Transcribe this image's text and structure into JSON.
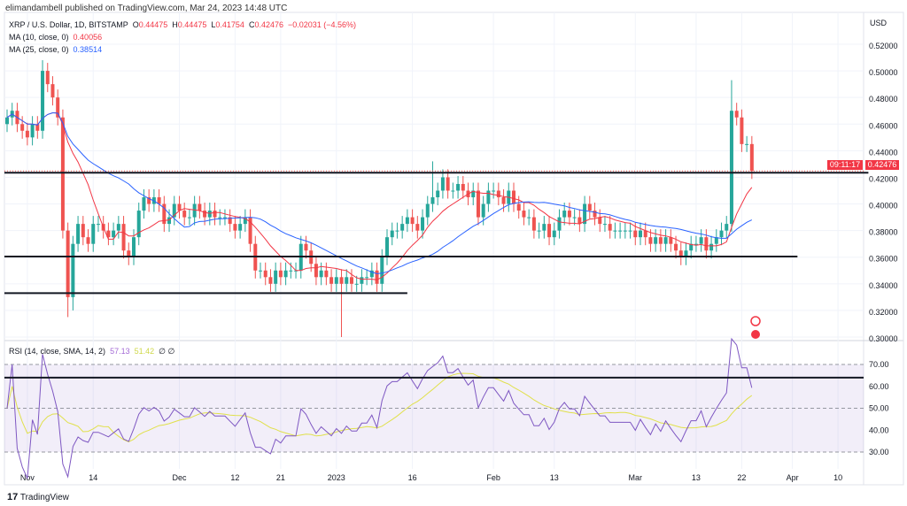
{
  "header": {
    "published": "elimandambell published on TradingView.com, Mar 24, 2023 14:48 UTC",
    "symbol": "XRP / U.S. Dollar, 1D, BITSTAMP",
    "o_label": "O",
    "o": "0.44475",
    "h_label": "H",
    "h": "0.44475",
    "l_label": "L",
    "l": "0.41754",
    "c_label": "C",
    "c": "0.42476",
    "change": "−0.02031 (−4.56%)",
    "ma10_label": "MA (10, close, 0)",
    "ma10": "0.40056",
    "ma25_label": "MA (25, close, 0)",
    "ma25": "0.38514",
    "rsi_label": "RSI (14, close, SMA, 14, 2)",
    "rsi": "57.13",
    "rsi_ma": "51.42",
    "rsi_extra": "∅ ∅"
  },
  "price_tag": {
    "price": "0.42476",
    "countdown": "09:11:17"
  },
  "footer": {
    "brand": "TradingView"
  },
  "colors": {
    "up": "#26a69a",
    "down": "#ef5350",
    "ma10": "#f23645",
    "ma25": "#2962ff",
    "rsi": "#7e57c2",
    "rsi_ma": "#e0e04a",
    "level": "#131722"
  },
  "chart_data": {
    "type": "candlestick",
    "currency": "USD",
    "start_date": "2022-10-28",
    "closes": [
      0.465,
      0.47,
      0.46,
      0.455,
      0.45,
      0.46,
      0.455,
      0.5,
      0.49,
      0.48,
      0.465,
      0.38,
      0.33,
      0.37,
      0.385,
      0.375,
      0.37,
      0.385,
      0.385,
      0.38,
      0.375,
      0.38,
      0.385,
      0.365,
      0.36,
      0.375,
      0.395,
      0.405,
      0.4,
      0.405,
      0.4,
      0.385,
      0.39,
      0.4,
      0.395,
      0.39,
      0.39,
      0.4,
      0.395,
      0.39,
      0.395,
      0.39,
      0.39,
      0.39,
      0.385,
      0.38,
      0.385,
      0.39,
      0.37,
      0.35,
      0.35,
      0.345,
      0.34,
      0.35,
      0.345,
      0.35,
      0.35,
      0.35,
      0.37,
      0.365,
      0.355,
      0.345,
      0.35,
      0.345,
      0.34,
      0.345,
      0.34,
      0.345,
      0.34,
      0.34,
      0.345,
      0.345,
      0.35,
      0.34,
      0.36,
      0.375,
      0.38,
      0.38,
      0.385,
      0.39,
      0.385,
      0.38,
      0.39,
      0.4,
      0.405,
      0.41,
      0.42,
      0.41,
      0.41,
      0.415,
      0.41,
      0.405,
      0.41,
      0.39,
      0.4,
      0.41,
      0.41,
      0.405,
      0.4,
      0.41,
      0.4,
      0.395,
      0.39,
      0.39,
      0.38,
      0.38,
      0.385,
      0.375,
      0.38,
      0.39,
      0.395,
      0.39,
      0.39,
      0.385,
      0.4,
      0.395,
      0.39,
      0.385,
      0.385,
      0.38,
      0.38,
      0.38,
      0.38,
      0.38,
      0.375,
      0.38,
      0.375,
      0.37,
      0.375,
      0.37,
      0.375,
      0.37,
      0.365,
      0.36,
      0.365,
      0.37,
      0.37,
      0.375,
      0.365,
      0.37,
      0.375,
      0.38,
      0.385,
      0.47,
      0.465,
      0.445,
      0.445,
      0.42476
    ],
    "wick_overrides": [
      {
        "index": 7,
        "high": 0.508
      },
      {
        "index": 12,
        "low": 0.315
      },
      {
        "index": 13,
        "low": 0.32
      },
      {
        "index": 66,
        "low": 0.3
      },
      {
        "index": 143,
        "high": 0.493
      },
      {
        "index": 84,
        "high": 0.432
      }
    ],
    "price_ticks": [
      "0.30000",
      "0.32000",
      "0.34000",
      "0.36000",
      "0.38000",
      "0.40000",
      "0.42000",
      "0.44000",
      "0.46000",
      "0.48000",
      "0.50000",
      "0.52000"
    ],
    "ylim": [
      0.3,
      0.52
    ],
    "rsi_ticks": [
      "30.00",
      "40.00",
      "50.00",
      "60.00",
      "70.00"
    ],
    "rsi_ylim": [
      30,
      70
    ],
    "x_ticks": [
      {
        "label": "Nov",
        "day": 4
      },
      {
        "label": "14",
        "day": 17
      },
      {
        "label": "Dec",
        "day": 34
      },
      {
        "label": "12",
        "day": 45
      },
      {
        "label": "21",
        "day": 54
      },
      {
        "label": "2023",
        "day": 65
      },
      {
        "label": "16",
        "day": 80
      },
      {
        "label": "Feb",
        "day": 96
      },
      {
        "label": "13",
        "day": 108
      },
      {
        "label": "Mar",
        "day": 124
      },
      {
        "label": "13",
        "day": 136
      },
      {
        "label": "22",
        "day": 145
      },
      {
        "label": "Apr",
        "day": 155
      },
      {
        "label": "10",
        "day": 164
      }
    ],
    "levels": [
      {
        "price": 0.4235,
        "to_day": 170
      },
      {
        "price": 0.3605,
        "to_day": 156
      },
      {
        "price": 0.333,
        "to_day": 79
      }
    ],
    "rsi_level": 64
  }
}
